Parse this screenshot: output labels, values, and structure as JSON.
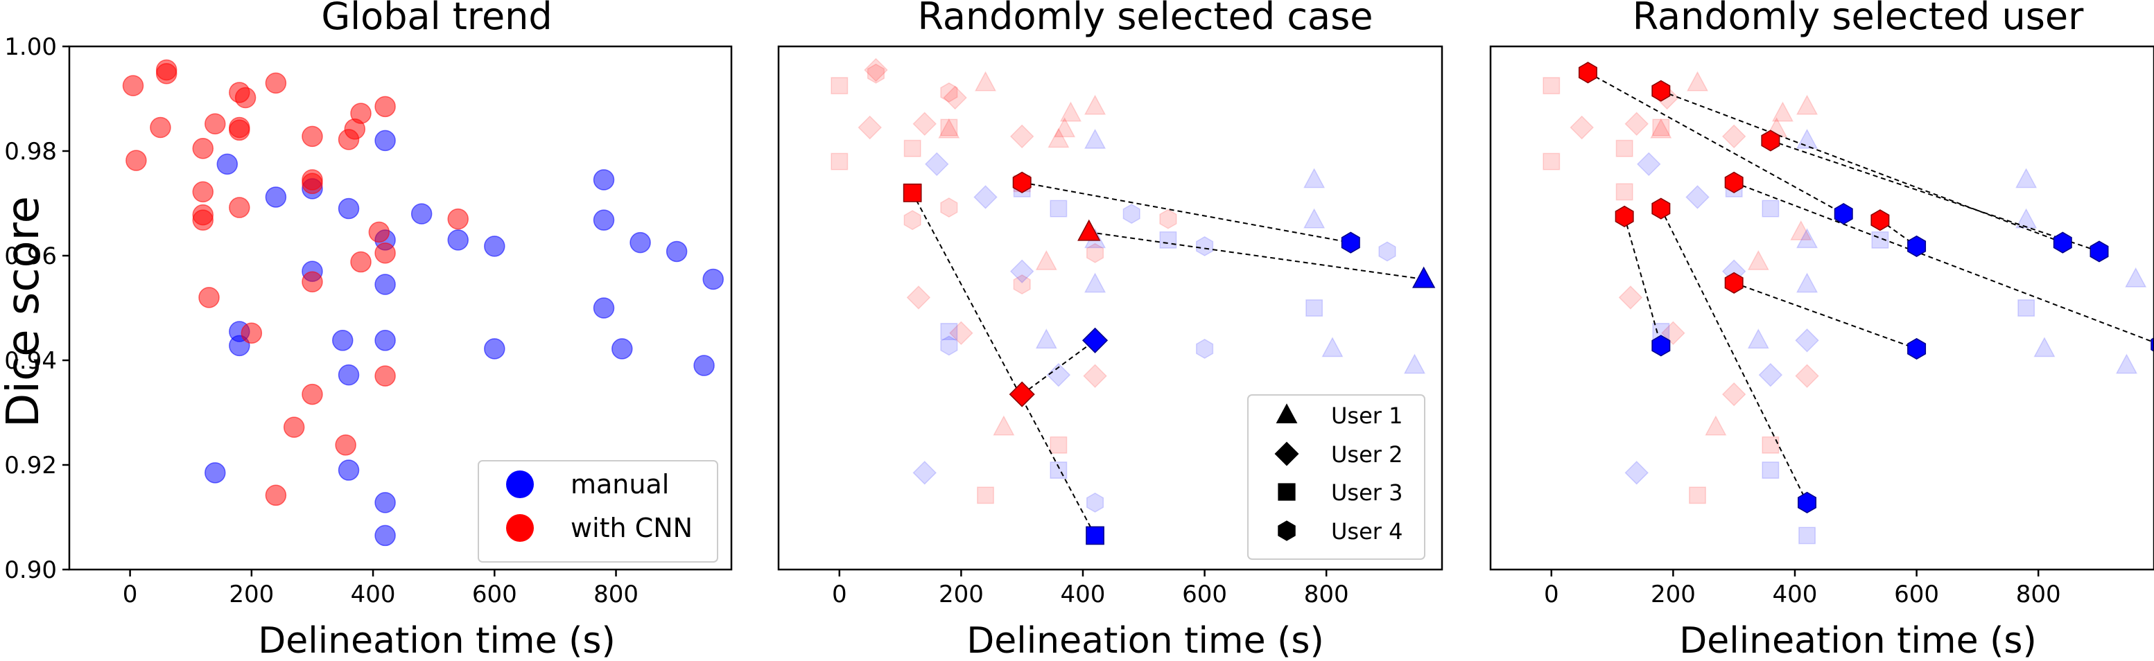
{
  "figure": {
    "ylabel": "Dice score"
  },
  "colors": {
    "manual": "#0000ff",
    "cnn": "#ff0000"
  },
  "chart_data": [
    {
      "type": "scatter",
      "title": "Global trend",
      "xlabel": "Delineation time (s)",
      "ylabel": "Dice score",
      "xlim": [
        -100,
        990
      ],
      "ylim": [
        0.9,
        1.0
      ],
      "xticks": [
        0,
        200,
        400,
        600,
        800
      ],
      "yticks": [
        0.9,
        0.92,
        0.94,
        0.96,
        0.98,
        1.0
      ],
      "grid": false,
      "legend": {
        "placement": "lower-right",
        "entries": [
          {
            "label": "manual",
            "color": "#0000ff"
          },
          {
            "label": "with CNN",
            "color": "#ff0000"
          }
        ]
      },
      "series": [
        {
          "name": "manual",
          "color": "#0000ff",
          "points": [
            [
              420,
              0.982
            ],
            [
              160,
              0.9775
            ],
            [
              240,
              0.9712
            ],
            [
              300,
              0.9728
            ],
            [
              360,
              0.969
            ],
            [
              480,
              0.968
            ],
            [
              420,
              0.963
            ],
            [
              540,
              0.963
            ],
            [
              600,
              0.9618
            ],
            [
              420,
              0.9545
            ],
            [
              300,
              0.957
            ],
            [
              180,
              0.9455
            ],
            [
              180,
              0.9428
            ],
            [
              350,
              0.9438
            ],
            [
              420,
              0.9438
            ],
            [
              600,
              0.9422
            ],
            [
              360,
              0.9372
            ],
            [
              140,
              0.9185
            ],
            [
              360,
              0.919
            ],
            [
              420,
              0.9128
            ],
            [
              420,
              0.9065
            ],
            [
              780,
              0.9745
            ],
            [
              780,
              0.9668
            ],
            [
              840,
              0.9625
            ],
            [
              900,
              0.9608
            ],
            [
              960,
              0.9555
            ],
            [
              780,
              0.95
            ],
            [
              810,
              0.9422
            ],
            [
              945,
              0.939
            ]
          ]
        },
        {
          "name": "with CNN",
          "color": "#ff0000",
          "points": [
            [
              60,
              0.9955
            ],
            [
              60,
              0.9948
            ],
            [
              5,
              0.9925
            ],
            [
              240,
              0.993
            ],
            [
              180,
              0.9912
            ],
            [
              190,
              0.9902
            ],
            [
              50,
              0.9845
            ],
            [
              140,
              0.9852
            ],
            [
              180,
              0.9845
            ],
            [
              180,
              0.984
            ],
            [
              120,
              0.9805
            ],
            [
              380,
              0.9872
            ],
            [
              420,
              0.9885
            ],
            [
              370,
              0.9842
            ],
            [
              360,
              0.9822
            ],
            [
              300,
              0.9828
            ],
            [
              10,
              0.9782
            ],
            [
              300,
              0.9745
            ],
            [
              300,
              0.9738
            ],
            [
              120,
              0.9722
            ],
            [
              120,
              0.9678
            ],
            [
              120,
              0.9668
            ],
            [
              180,
              0.9692
            ],
            [
              410,
              0.9645
            ],
            [
              420,
              0.9605
            ],
            [
              540,
              0.967
            ],
            [
              380,
              0.9588
            ],
            [
              300,
              0.955
            ],
            [
              130,
              0.952
            ],
            [
              200,
              0.9452
            ],
            [
              420,
              0.937
            ],
            [
              300,
              0.9335
            ],
            [
              270,
              0.9272
            ],
            [
              355,
              0.9238
            ],
            [
              240,
              0.9142
            ]
          ]
        }
      ]
    },
    {
      "type": "scatter",
      "title": "Randomly selected case",
      "xlabel": "Delineation time (s)",
      "xlim": [
        -100,
        990
      ],
      "ylim": [
        0.9,
        1.0
      ],
      "xticks": [
        0,
        200,
        400,
        600,
        800
      ],
      "grid": false,
      "legend": {
        "placement": "lower-right",
        "entries": [
          {
            "label": "User 1",
            "marker": "triangle"
          },
          {
            "label": "User 2",
            "marker": "diamond"
          },
          {
            "label": "User 3",
            "marker": "square"
          },
          {
            "label": "User 4",
            "marker": "hexagon"
          }
        ]
      },
      "background": [
        {
          "marker": "square",
          "color": "#ff0000",
          "points": [
            [
              0,
              0.9925
            ],
            [
              0,
              0.978
            ],
            [
              120,
              0.9805
            ],
            [
              120,
              0.9722
            ],
            [
              240,
              0.9142
            ],
            [
              360,
              0.9238
            ],
            [
              300,
              0.9738
            ],
            [
              180,
              0.9845
            ]
          ]
        },
        {
          "marker": "diamond",
          "color": "#ff0000",
          "points": [
            [
              60,
              0.9955
            ],
            [
              50,
              0.9845
            ],
            [
              140,
              0.9852
            ],
            [
              190,
              0.9902
            ],
            [
              300,
              0.9828
            ],
            [
              130,
              0.952
            ],
            [
              200,
              0.9452
            ],
            [
              420,
              0.937
            ]
          ]
        },
        {
          "marker": "triangle",
          "color": "#ff0000",
          "points": [
            [
              240,
              0.993
            ],
            [
              180,
              0.984
            ],
            [
              380,
              0.9872
            ],
            [
              420,
              0.9885
            ],
            [
              360,
              0.9822
            ],
            [
              370,
              0.9842
            ],
            [
              340,
              0.9588
            ],
            [
              270,
              0.9272
            ]
          ]
        },
        {
          "marker": "hexagon",
          "color": "#ff0000",
          "points": [
            [
              60,
              0.9948
            ],
            [
              180,
              0.9912
            ],
            [
              180,
              0.9692
            ],
            [
              120,
              0.9668
            ],
            [
              300,
              0.9545
            ],
            [
              540,
              0.967
            ],
            [
              420,
              0.9605
            ]
          ]
        },
        {
          "marker": "triangle",
          "color": "#0000ff",
          "points": [
            [
              420,
              0.982
            ],
            [
              420,
              0.963
            ],
            [
              420,
              0.9545
            ],
            [
              340,
              0.9438
            ],
            [
              780,
              0.9745
            ],
            [
              780,
              0.9668
            ],
            [
              810,
              0.9422
            ],
            [
              945,
              0.939
            ]
          ]
        },
        {
          "marker": "diamond",
          "color": "#0000ff",
          "points": [
            [
              160,
              0.9775
            ],
            [
              240,
              0.9712
            ],
            [
              300,
              0.957
            ],
            [
              360,
              0.9372
            ],
            [
              140,
              0.9185
            ]
          ]
        },
        {
          "marker": "square",
          "color": "#0000ff",
          "points": [
            [
              300,
              0.9728
            ],
            [
              360,
              0.969
            ],
            [
              540,
              0.963
            ],
            [
              180,
              0.9455
            ],
            [
              360,
              0.919
            ],
            [
              780,
              0.95
            ]
          ]
        },
        {
          "marker": "hexagon",
          "color": "#0000ff",
          "points": [
            [
              480,
              0.968
            ],
            [
              600,
              0.9618
            ],
            [
              600,
              0.9422
            ],
            [
              180,
              0.9428
            ],
            [
              420,
              0.9128
            ],
            [
              900,
              0.9608
            ]
          ]
        }
      ],
      "pairs": [
        {
          "marker": "triangle",
          "manual": [
            960,
            0.9555
          ],
          "cnn": [
            410,
            0.9645
          ]
        },
        {
          "marker": "diamond",
          "manual": [
            420,
            0.9438
          ],
          "cnn": [
            300,
            0.9335
          ]
        },
        {
          "marker": "square",
          "manual": [
            420,
            0.9065
          ],
          "cnn": [
            120,
            0.972
          ]
        },
        {
          "marker": "hexagon",
          "manual": [
            840,
            0.9625
          ],
          "cnn": [
            300,
            0.974
          ]
        }
      ]
    },
    {
      "type": "scatter",
      "title": "Randomly selected user",
      "xlabel": "Delineation time (s)",
      "xlim": [
        -100,
        990
      ],
      "ylim": [
        0.9,
        1.0
      ],
      "xticks": [
        0,
        200,
        400,
        600,
        800
      ],
      "grid": false,
      "background": [
        {
          "marker": "square",
          "color": "#ff0000",
          "points": [
            [
              0,
              0.9925
            ],
            [
              0,
              0.978
            ],
            [
              120,
              0.9805
            ],
            [
              120,
              0.9722
            ],
            [
              240,
              0.9142
            ],
            [
              360,
              0.9238
            ],
            [
              180,
              0.9845
            ]
          ]
        },
        {
          "marker": "diamond",
          "color": "#ff0000",
          "points": [
            [
              50,
              0.9845
            ],
            [
              140,
              0.9852
            ],
            [
              190,
              0.9902
            ],
            [
              300,
              0.9828
            ],
            [
              130,
              0.952
            ],
            [
              200,
              0.9452
            ],
            [
              420,
              0.937
            ],
            [
              300,
              0.9335
            ]
          ]
        },
        {
          "marker": "triangle",
          "color": "#ff0000",
          "points": [
            [
              240,
              0.993
            ],
            [
              180,
              0.984
            ],
            [
              380,
              0.9872
            ],
            [
              420,
              0.9885
            ],
            [
              370,
              0.9842
            ],
            [
              340,
              0.9588
            ],
            [
              270,
              0.9272
            ],
            [
              410,
              0.9645
            ]
          ]
        },
        {
          "marker": "triangle",
          "color": "#0000ff",
          "points": [
            [
              420,
              0.982
            ],
            [
              420,
              0.963
            ],
            [
              420,
              0.9545
            ],
            [
              340,
              0.9438
            ],
            [
              780,
              0.9745
            ],
            [
              780,
              0.9668
            ],
            [
              810,
              0.9422
            ],
            [
              945,
              0.939
            ],
            [
              960,
              0.9555
            ]
          ]
        },
        {
          "marker": "diamond",
          "color": "#0000ff",
          "points": [
            [
              160,
              0.9775
            ],
            [
              240,
              0.9712
            ],
            [
              300,
              0.957
            ],
            [
              360,
              0.9372
            ],
            [
              140,
              0.9185
            ],
            [
              420,
              0.9438
            ]
          ]
        },
        {
          "marker": "square",
          "color": "#0000ff",
          "points": [
            [
              300,
              0.9728
            ],
            [
              360,
              0.969
            ],
            [
              540,
              0.963
            ],
            [
              180,
              0.9455
            ],
            [
              360,
              0.919
            ],
            [
              780,
              0.95
            ],
            [
              420,
              0.9065
            ]
          ]
        }
      ],
      "pairs": [
        {
          "marker": "hexagon",
          "cnn": [
            60,
            0.995
          ],
          "manual": [
            480,
            0.968
          ]
        },
        {
          "marker": "hexagon",
          "cnn": [
            180,
            0.9915
          ],
          "manual": [
            840,
            0.9625
          ]
        },
        {
          "marker": "hexagon",
          "cnn": [
            360,
            0.982
          ],
          "manual": [
            900,
            0.9608
          ]
        },
        {
          "marker": "hexagon",
          "cnn": [
            300,
            0.974
          ],
          "manual": [
            1000,
            0.943
          ]
        },
        {
          "marker": "hexagon",
          "cnn": [
            540,
            0.9668
          ],
          "manual": [
            600,
            0.9618
          ]
        },
        {
          "marker": "hexagon",
          "cnn": [
            120,
            0.9675
          ],
          "manual": [
            180,
            0.9428
          ]
        },
        {
          "marker": "hexagon",
          "cnn": [
            180,
            0.969
          ],
          "manual": [
            420,
            0.9128
          ]
        },
        {
          "marker": "hexagon",
          "cnn": [
            300,
            0.9548
          ],
          "manual": [
            600,
            0.9422
          ]
        }
      ]
    }
  ]
}
